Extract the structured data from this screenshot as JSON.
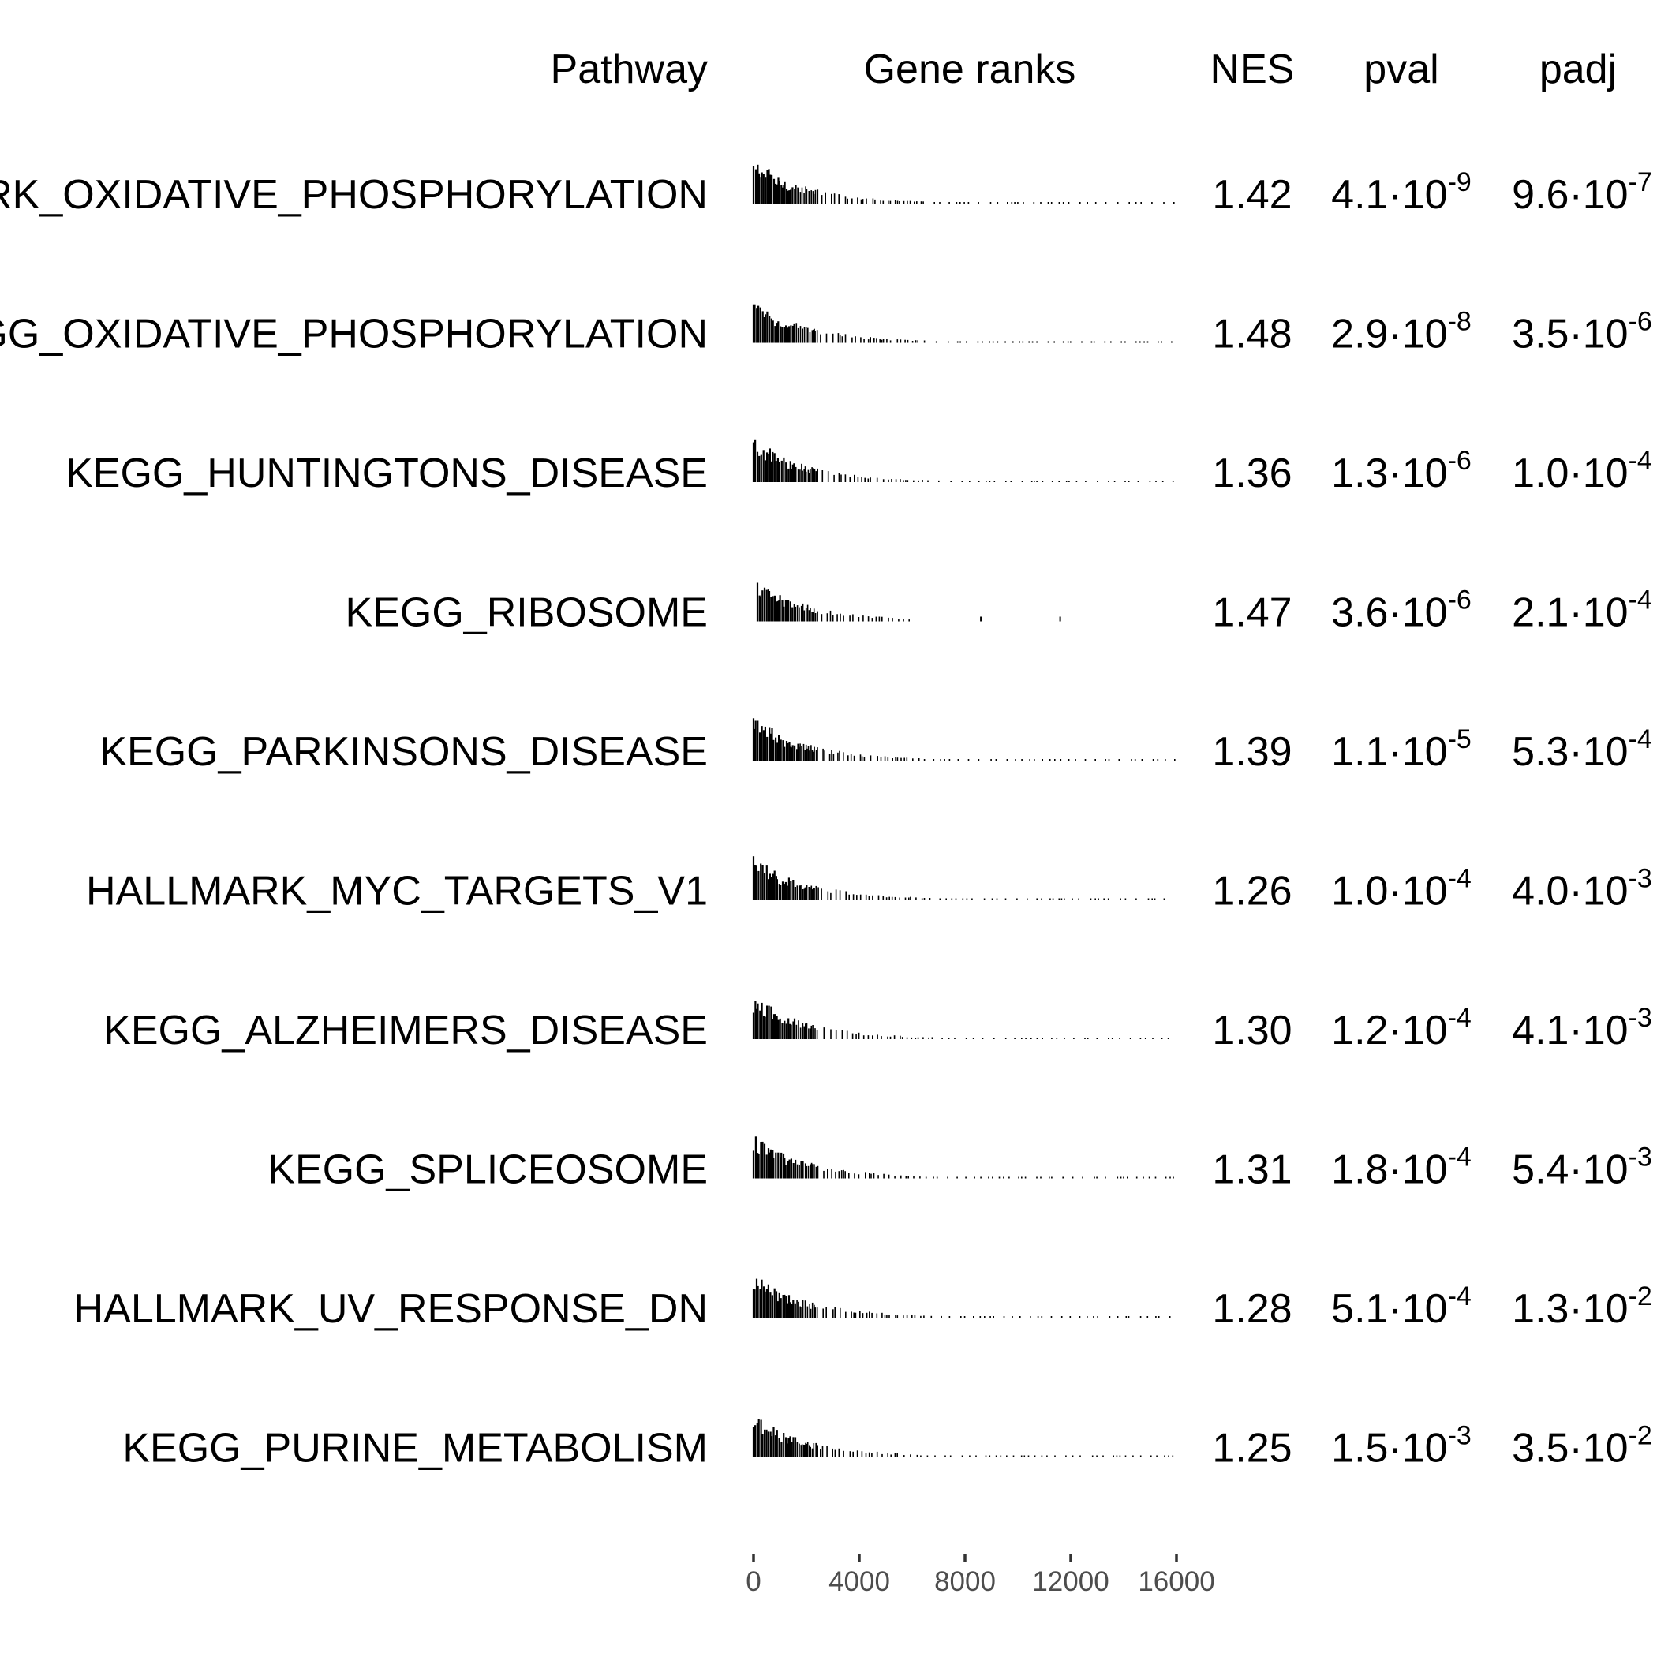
{
  "chart_data": {
    "type": "table",
    "headers": {
      "pathway": "Pathway",
      "ranks": "Gene ranks",
      "nes": "NES",
      "pval": "pval",
      "padj": "padj"
    },
    "x_axis": {
      "range": [
        0,
        16000
      ],
      "ticks": [
        0,
        4000,
        8000,
        12000,
        16000
      ],
      "tick_labels": [
        "0",
        "4000",
        "8000",
        "12000",
        "16000"
      ]
    },
    "rows": [
      {
        "pathway": "HALLMARK_OXIDATIVE_PHOSPHORYLATION",
        "nes": "1.42",
        "pval": {
          "mantissa": "4.1·10",
          "exponent": "-9"
        },
        "padj": {
          "mantissa": "9.6·10",
          "exponent": "-7"
        }
      },
      {
        "pathway": "KEGG_OXIDATIVE_PHOSPHORYLATION",
        "nes": "1.48",
        "pval": {
          "mantissa": "2.9·10",
          "exponent": "-8"
        },
        "padj": {
          "mantissa": "3.5·10",
          "exponent": "-6"
        }
      },
      {
        "pathway": "KEGG_HUNTINGTONS_DISEASE",
        "nes": "1.36",
        "pval": {
          "mantissa": "1.3·10",
          "exponent": "-6"
        },
        "padj": {
          "mantissa": "1.0·10",
          "exponent": "-4"
        }
      },
      {
        "pathway": "KEGG_RIBOSOME",
        "nes": "1.47",
        "pval": {
          "mantissa": "3.6·10",
          "exponent": "-6"
        },
        "padj": {
          "mantissa": "2.1·10",
          "exponent": "-4"
        }
      },
      {
        "pathway": "KEGG_PARKINSONS_DISEASE",
        "nes": "1.39",
        "pval": {
          "mantissa": "1.1·10",
          "exponent": "-5"
        },
        "padj": {
          "mantissa": "5.3·10",
          "exponent": "-4"
        }
      },
      {
        "pathway": "HALLMARK_MYC_TARGETS_V1",
        "nes": "1.26",
        "pval": {
          "mantissa": "1.0·10",
          "exponent": "-4"
        },
        "padj": {
          "mantissa": "4.0·10",
          "exponent": "-3"
        }
      },
      {
        "pathway": "KEGG_ALZHEIMERS_DISEASE",
        "nes": "1.30",
        "pval": {
          "mantissa": "1.2·10",
          "exponent": "-4"
        },
        "padj": {
          "mantissa": "4.1·10",
          "exponent": "-3"
        }
      },
      {
        "pathway": "KEGG_SPLICEOSOME",
        "nes": "1.31",
        "pval": {
          "mantissa": "1.8·10",
          "exponent": "-4"
        },
        "padj": {
          "mantissa": "5.4·10",
          "exponent": "-3"
        }
      },
      {
        "pathway": "HALLMARK_UV_RESPONSE_DN",
        "nes": "1.28",
        "pval": {
          "mantissa": "5.1·10",
          "exponent": "-4"
        },
        "padj": {
          "mantissa": "1.3·10",
          "exponent": "-2"
        }
      },
      {
        "pathway": "KEGG_PURINE_METABOLISM",
        "nes": "1.25",
        "pval": {
          "mantissa": "1.5·10",
          "exponent": "-3"
        },
        "padj": {
          "mantissa": "3.5·10",
          "exponent": "-2"
        }
      }
    ]
  }
}
